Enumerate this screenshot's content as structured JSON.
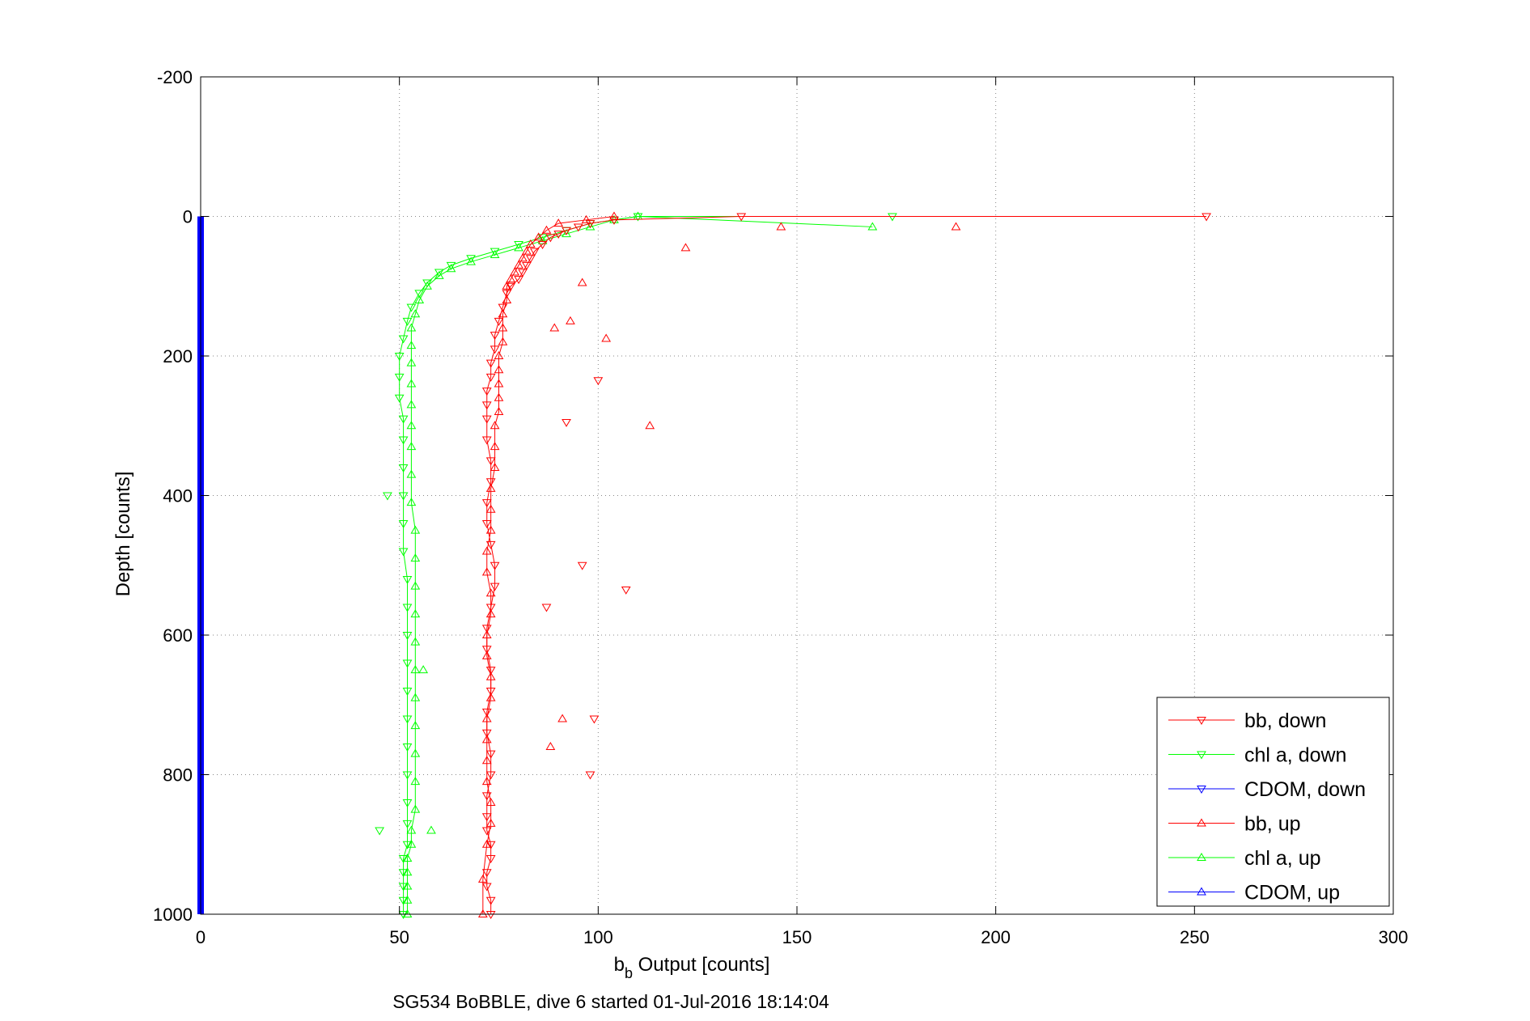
{
  "chart_data": {
    "type": "scatter",
    "title": "",
    "caption": "SG534 BoBBLE, dive 6 started 01-Jul-2016 18:14:04",
    "xlabel_main": "b",
    "xlabel_sub": "b",
    "xlabel_rest": " Output [counts]",
    "ylabel": "Depth [counts]",
    "xlim": [
      0,
      300
    ],
    "ylim": [
      -200,
      1000
    ],
    "y_reversed": true,
    "grid": true,
    "x_ticks": [
      0,
      50,
      100,
      150,
      200,
      250,
      300
    ],
    "y_ticks": [
      -200,
      0,
      200,
      400,
      600,
      800,
      1000
    ],
    "legend_position": "bottom-right",
    "legend": [
      {
        "label": "bb, down",
        "color": "#ff0000",
        "marker": "triangle-down"
      },
      {
        "label": "chl a, down",
        "color": "#00ff00",
        "marker": "triangle-down"
      },
      {
        "label": "CDOM, down",
        "color": "#0000ff",
        "marker": "triangle-down"
      },
      {
        "label": "bb, up",
        "color": "#ff0000",
        "marker": "triangle-up"
      },
      {
        "label": "chl a, up",
        "color": "#00ff00",
        "marker": "triangle-up"
      },
      {
        "label": "CDOM, up",
        "color": "#0000ff",
        "marker": "triangle-up"
      }
    ],
    "series": [
      {
        "name": "bb, down",
        "color": "#ff0000",
        "marker": "triangle-down",
        "x": [
          253,
          136,
          104,
          98,
          95,
          92,
          90,
          88,
          86,
          84,
          83,
          82,
          81,
          80,
          78,
          77,
          76,
          75,
          74,
          74,
          73,
          73,
          72,
          72,
          72,
          72,
          73,
          73,
          72,
          72,
          73,
          74,
          74,
          73,
          72,
          72,
          73,
          73,
          72,
          72,
          73,
          73,
          72,
          72,
          72,
          73,
          73,
          72,
          72,
          73,
          73
        ],
        "y": [
          0,
          0,
          5,
          10,
          15,
          20,
          25,
          30,
          40,
          50,
          60,
          70,
          80,
          90,
          100,
          110,
          130,
          150,
          170,
          190,
          210,
          230,
          250,
          270,
          290,
          320,
          350,
          380,
          410,
          440,
          470,
          500,
          530,
          560,
          590,
          620,
          650,
          680,
          710,
          740,
          770,
          800,
          830,
          860,
          880,
          900,
          920,
          940,
          960,
          980,
          1000
        ]
      },
      {
        "name": "chl a, down",
        "color": "#00ff00",
        "marker": "triangle-down",
        "x": [
          174,
          110,
          104,
          98,
          92,
          86,
          80,
          74,
          68,
          63,
          60,
          57,
          55,
          53,
          52,
          51,
          50,
          50,
          50,
          51,
          51,
          51,
          51,
          51,
          51,
          52,
          52,
          52,
          52,
          52,
          52,
          52,
          52,
          52,
          52,
          52,
          51,
          51,
          51,
          51,
          51
        ],
        "y": [
          0,
          0,
          5,
          10,
          20,
          30,
          40,
          50,
          60,
          70,
          80,
          95,
          110,
          130,
          150,
          175,
          200,
          230,
          260,
          290,
          320,
          360,
          400,
          440,
          480,
          520,
          560,
          600,
          640,
          680,
          720,
          760,
          800,
          840,
          870,
          900,
          920,
          940,
          960,
          980,
          1000
        ]
      },
      {
        "name": "CDOM, down",
        "color": "#0000ff",
        "marker": "triangle-down",
        "x": [
          0,
          0,
          0,
          0,
          0,
          0,
          0,
          0,
          0,
          0,
          0,
          0,
          0
        ],
        "y": [
          0,
          80,
          160,
          240,
          320,
          400,
          480,
          560,
          640,
          720,
          800,
          880,
          1000
        ]
      },
      {
        "name": "bb, up",
        "color": "#ff0000",
        "marker": "triangle-up",
        "x": [
          104,
          97,
          90,
          87,
          85,
          83,
          82,
          81,
          80,
          79,
          78,
          77,
          77,
          76,
          76,
          76,
          75,
          75,
          75,
          75,
          75,
          74,
          74,
          74,
          73,
          73,
          73,
          72,
          72,
          73,
          73,
          72,
          72,
          73,
          73,
          72,
          72,
          72,
          72,
          73,
          73,
          72,
          71,
          71
        ],
        "y": [
          0,
          5,
          10,
          20,
          30,
          40,
          50,
          60,
          70,
          80,
          90,
          100,
          120,
          140,
          160,
          180,
          200,
          220,
          240,
          260,
          280,
          300,
          330,
          360,
          390,
          420,
          450,
          480,
          510,
          540,
          570,
          600,
          630,
          660,
          690,
          720,
          750,
          780,
          810,
          840,
          870,
          900,
          950,
          1000
        ]
      },
      {
        "name": "chl a, up",
        "color": "#00ff00",
        "marker": "triangle-up",
        "x": [
          169,
          110,
          104,
          98,
          92,
          86,
          80,
          74,
          68,
          63,
          60,
          57,
          55,
          54,
          53,
          53,
          53,
          53,
          53,
          53,
          53,
          53,
          53,
          54,
          54,
          54,
          54,
          54,
          54,
          54,
          54,
          54,
          54,
          54,
          53,
          53,
          52,
          52,
          52,
          52,
          52
        ],
        "y": [
          15,
          0,
          5,
          15,
          25,
          35,
          45,
          55,
          65,
          75,
          85,
          100,
          120,
          140,
          160,
          185,
          210,
          240,
          270,
          300,
          330,
          370,
          410,
          450,
          490,
          530,
          570,
          610,
          650,
          690,
          730,
          770,
          810,
          850,
          880,
          900,
          920,
          940,
          960,
          980,
          1000
        ]
      },
      {
        "name": "CDOM, up",
        "color": "#0000ff",
        "marker": "triangle-up",
        "x": [
          0,
          0,
          0,
          0,
          0,
          0,
          0,
          0,
          0,
          0,
          0,
          0,
          0
        ],
        "y": [
          0,
          80,
          160,
          240,
          320,
          400,
          480,
          560,
          640,
          720,
          800,
          880,
          1000
        ]
      }
    ],
    "outliers": [
      {
        "series": "bb, down",
        "x": [
          96,
          107,
          87,
          100,
          92,
          98,
          99
        ],
        "y": [
          500,
          535,
          560,
          235,
          295,
          800,
          720
        ]
      },
      {
        "series": "bb, up",
        "x": [
          190,
          146,
          122,
          113,
          102,
          96,
          93,
          89,
          91,
          88
        ],
        "y": [
          15,
          15,
          45,
          300,
          175,
          95,
          150,
          160,
          720,
          760
        ]
      },
      {
        "series": "chl a, down",
        "x": [
          47,
          45
        ],
        "y": [
          400,
          880
        ]
      },
      {
        "series": "chl a, up",
        "x": [
          58,
          56
        ],
        "y": [
          880,
          650
        ]
      }
    ]
  }
}
